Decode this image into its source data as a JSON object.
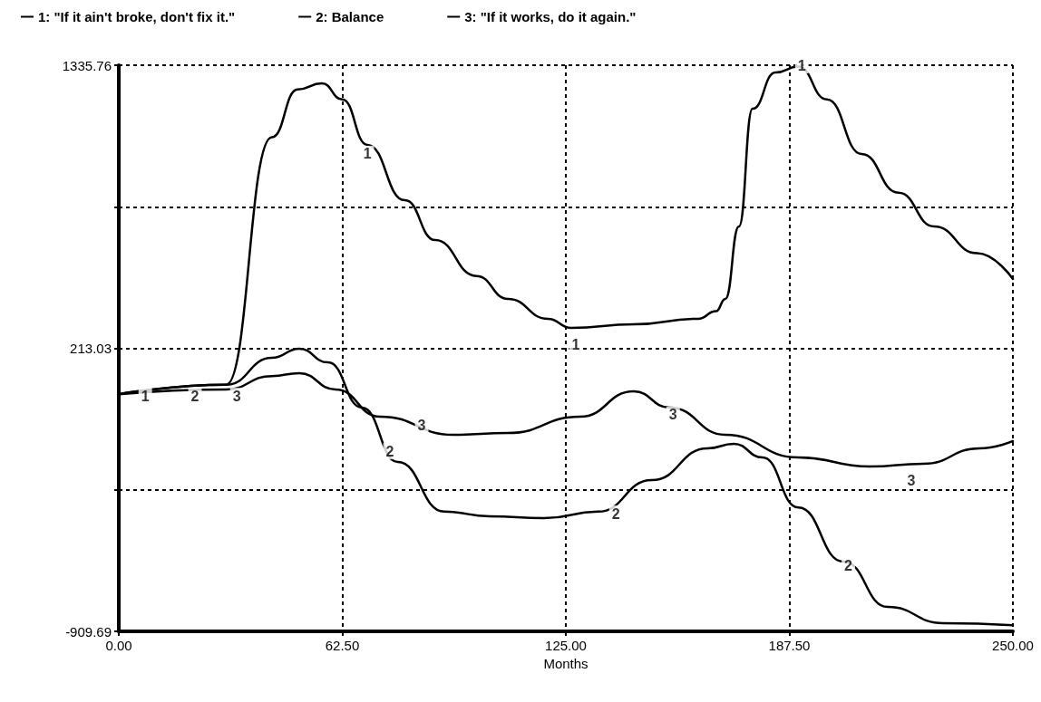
{
  "chart_data": {
    "type": "line",
    "xlabel": "Months",
    "xlim": [
      0,
      250
    ],
    "xticks": [
      {
        "value": 0,
        "label": "0.00"
      },
      {
        "value": 62.5,
        "label": "62.50"
      },
      {
        "value": 125,
        "label": "125.00"
      },
      {
        "value": 187.5,
        "label": "187.50"
      },
      {
        "value": 250,
        "label": "250.00"
      }
    ],
    "ylim": [
      -909.69,
      1335.76
    ],
    "yticks": [
      -909.69,
      {
        "value": -348.33,
        "label": null
      },
      213.03,
      {
        "value": 774.4,
        "label": null
      },
      1335.76
    ],
    "grid": true,
    "legend": "top left",
    "marker": "none",
    "line_style": "solid",
    "series": [
      {
        "name": "1: \"If it ain't broke, don't fix it.\"",
        "color": "#000000",
        "x": [
          0,
          30,
          42.8,
          50,
          56.8,
          62.5,
          69.5,
          80,
          88.5,
          100,
          108.8,
          120,
          126.5,
          144,
          162,
          167,
          169.6,
          173.4,
          177.2,
          183.6,
          190,
          198,
          207.7,
          218,
          228,
          240,
          250
        ],
        "values": [
          31,
          68,
          1050,
          1240,
          1264,
          1200,
          1020,
          800,
          642,
          500,
          409,
          330,
          294,
          308,
          330,
          360,
          409,
          696,
          1163,
          1307,
          1330,
          1200,
          984,
          830,
          696,
          590,
          488
        ]
      },
      {
        "name": "2: Balance",
        "color": "#000000",
        "x": [
          0,
          30,
          42.8,
          50.5,
          58.5,
          68,
          78,
          91,
          103.7,
          118.9,
          134,
          149,
          164.6,
          172,
          180,
          190,
          202.6,
          215,
          230.5,
          250
        ],
        "values": [
          31,
          68,
          175,
          211,
          157,
          -22,
          -238,
          -435,
          -453,
          -461,
          -435,
          -310,
          -184,
          -166,
          -220,
          -418,
          -633,
          -813,
          -877,
          -885
        ]
      },
      {
        "name": "3: \"If it works, do it again.\"",
        "color": "#000000",
        "x": [
          0,
          30,
          42.8,
          50.5,
          60.6,
          73,
          93.6,
          108.8,
          129,
          144,
          154,
          169.6,
          190,
          210,
          225,
          240.6,
          250
        ],
        "values": [
          31,
          50,
          103,
          114,
          50,
          -58,
          -130,
          -123,
          -58,
          42,
          -22,
          -130,
          -220,
          -256,
          -245,
          -184,
          -155
        ]
      }
    ],
    "annotations": [
      {
        "text": "1",
        "x": 7.4,
        "y": 24
      },
      {
        "text": "1",
        "x": 69.5,
        "y": 984
      },
      {
        "text": "1",
        "x": 127.8,
        "y": 229
      },
      {
        "text": "1",
        "x": 191,
        "y": 1335.76
      },
      {
        "text": "2",
        "x": 21.3,
        "y": 24
      },
      {
        "text": "2",
        "x": 75.8,
        "y": -195
      },
      {
        "text": "2",
        "x": 139,
        "y": -443
      },
      {
        "text": "2",
        "x": 204,
        "y": -651
      },
      {
        "text": "3",
        "x": 33,
        "y": 24
      },
      {
        "text": "3",
        "x": 84.7,
        "y": -94
      },
      {
        "text": "3",
        "x": 155,
        "y": -51
      },
      {
        "text": "3",
        "x": 221.6,
        "y": -310
      }
    ]
  }
}
